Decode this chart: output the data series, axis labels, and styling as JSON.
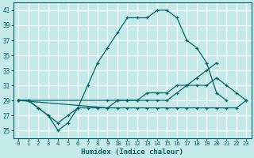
{
  "xlabel": "Humidex (Indice chaleur)",
  "ylabel": "",
  "bg_color": "#c5e8e8",
  "grid_color": "#ffffff",
  "line_color": "#006666",
  "xlim": [
    -0.5,
    23.5
  ],
  "ylim": [
    24.0,
    42.0
  ],
  "yticks": [
    25,
    27,
    29,
    31,
    33,
    35,
    37,
    39,
    41
  ],
  "xticks": [
    0,
    1,
    2,
    3,
    4,
    5,
    6,
    7,
    8,
    9,
    10,
    11,
    12,
    13,
    14,
    15,
    16,
    17,
    18,
    19,
    20,
    21,
    22,
    23
  ],
  "series": [
    {
      "x": [
        0,
        1,
        2,
        3,
        4,
        5,
        6,
        7,
        8,
        9,
        10,
        11,
        12,
        13,
        14,
        15,
        16,
        17,
        18,
        19,
        20,
        21
      ],
      "y": [
        29,
        29,
        28,
        27,
        25,
        26,
        28,
        31,
        34,
        36,
        38,
        40,
        40,
        40,
        41,
        41,
        40,
        37,
        36,
        34,
        30,
        29
      ]
    },
    {
      "x": [
        0,
        1,
        2,
        3,
        4,
        5,
        6,
        7,
        8,
        9,
        10,
        11,
        12,
        13,
        14,
        15,
        16,
        17,
        18,
        19,
        20,
        21,
        22,
        23
      ],
      "y": [
        29,
        29,
        28,
        27,
        26,
        27,
        28,
        28,
        28,
        28,
        29,
        29,
        29,
        30,
        30,
        30,
        31,
        31,
        31,
        31,
        32,
        31,
        30,
        29
      ]
    },
    {
      "x": [
        0,
        9,
        10,
        11,
        12,
        13,
        14,
        15,
        16,
        17,
        18,
        19,
        20
      ],
      "y": [
        29,
        29,
        29,
        29,
        29,
        29,
        29,
        29,
        30,
        31,
        32,
        33,
        34
      ]
    },
    {
      "x": [
        0,
        9,
        10,
        11,
        12,
        13,
        14,
        15,
        16,
        17,
        18,
        19,
        20,
        21,
        22,
        23
      ],
      "y": [
        29,
        28,
        28,
        28,
        28,
        28,
        28,
        28,
        28,
        28,
        28,
        28,
        28,
        28,
        28,
        29
      ]
    }
  ]
}
